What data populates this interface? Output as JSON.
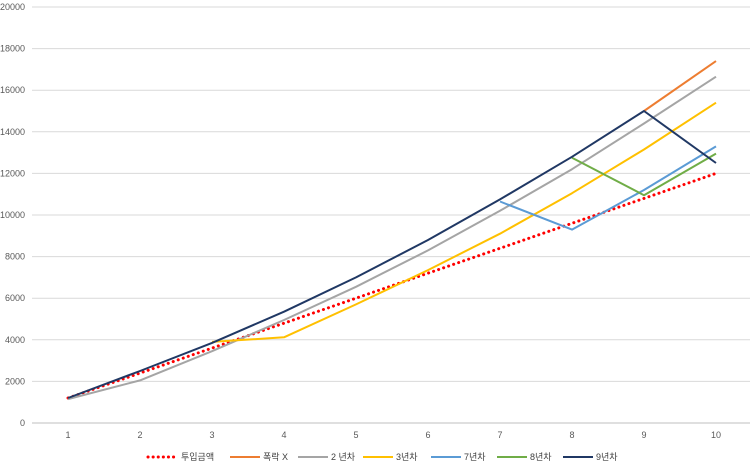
{
  "chart_data": {
    "type": "line",
    "title": "",
    "xlabel": "",
    "ylabel": "",
    "x": [
      1,
      2,
      3,
      4,
      5,
      6,
      7,
      8,
      9,
      10
    ],
    "ylim": [
      0,
      20000
    ],
    "yticks": [
      0,
      2000,
      4000,
      6000,
      8000,
      10000,
      12000,
      14000,
      16000,
      18000,
      20000
    ],
    "grid": true,
    "legend_position": "bottom",
    "series": [
      {
        "name": "투입금액",
        "color": "#ff0000",
        "style": "dotted",
        "points": [
          [
            1,
            1200
          ],
          [
            2,
            2400
          ],
          [
            3,
            3600
          ],
          [
            4,
            4800
          ],
          [
            5,
            6000
          ],
          [
            6,
            7200
          ],
          [
            7,
            8400
          ],
          [
            8,
            9600
          ],
          [
            9,
            10800
          ],
          [
            10,
            12000
          ]
        ]
      },
      {
        "name": "폭락 X",
        "color": "#ed7d31",
        "style": "solid",
        "points": [
          [
            9,
            15000
          ],
          [
            10,
            17400
          ]
        ]
      },
      {
        "name": "2 년차",
        "color": "#a5a5a5",
        "style": "solid",
        "points": [
          [
            1,
            1150
          ],
          [
            2,
            2050
          ],
          [
            3,
            3450
          ],
          [
            4,
            4950
          ],
          [
            5,
            6550
          ],
          [
            6,
            8300
          ],
          [
            7,
            10200
          ],
          [
            8,
            12200
          ],
          [
            9,
            14400
          ],
          [
            10,
            16650
          ]
        ]
      },
      {
        "name": "3년차",
        "color": "#ffc000",
        "style": "solid",
        "points": [
          [
            3,
            3900
          ],
          [
            4,
            4120
          ],
          [
            5,
            5700
          ],
          [
            6,
            7350
          ],
          [
            7,
            9100
          ],
          [
            8,
            11050
          ],
          [
            9,
            13150
          ],
          [
            10,
            15400
          ]
        ]
      },
      {
        "name": "7년차",
        "color": "#5b9bd5",
        "style": "solid",
        "points": [
          [
            7,
            10650
          ],
          [
            8,
            9300
          ],
          [
            9,
            11200
          ],
          [
            10,
            13300
          ]
        ]
      },
      {
        "name": "8년차",
        "color": "#70ad47",
        "style": "solid",
        "points": [
          [
            8,
            12750
          ],
          [
            9,
            10950
          ],
          [
            10,
            12950
          ]
        ]
      },
      {
        "name": "9년차",
        "color": "#203864",
        "style": "solid",
        "points": [
          [
            1,
            1200
          ],
          [
            2,
            2500
          ],
          [
            3,
            3850
          ],
          [
            4,
            5350
          ],
          [
            5,
            7000
          ],
          [
            6,
            8800
          ],
          [
            7,
            10750
          ],
          [
            8,
            12800
          ],
          [
            9,
            15000
          ],
          [
            10,
            12500
          ]
        ]
      }
    ]
  }
}
